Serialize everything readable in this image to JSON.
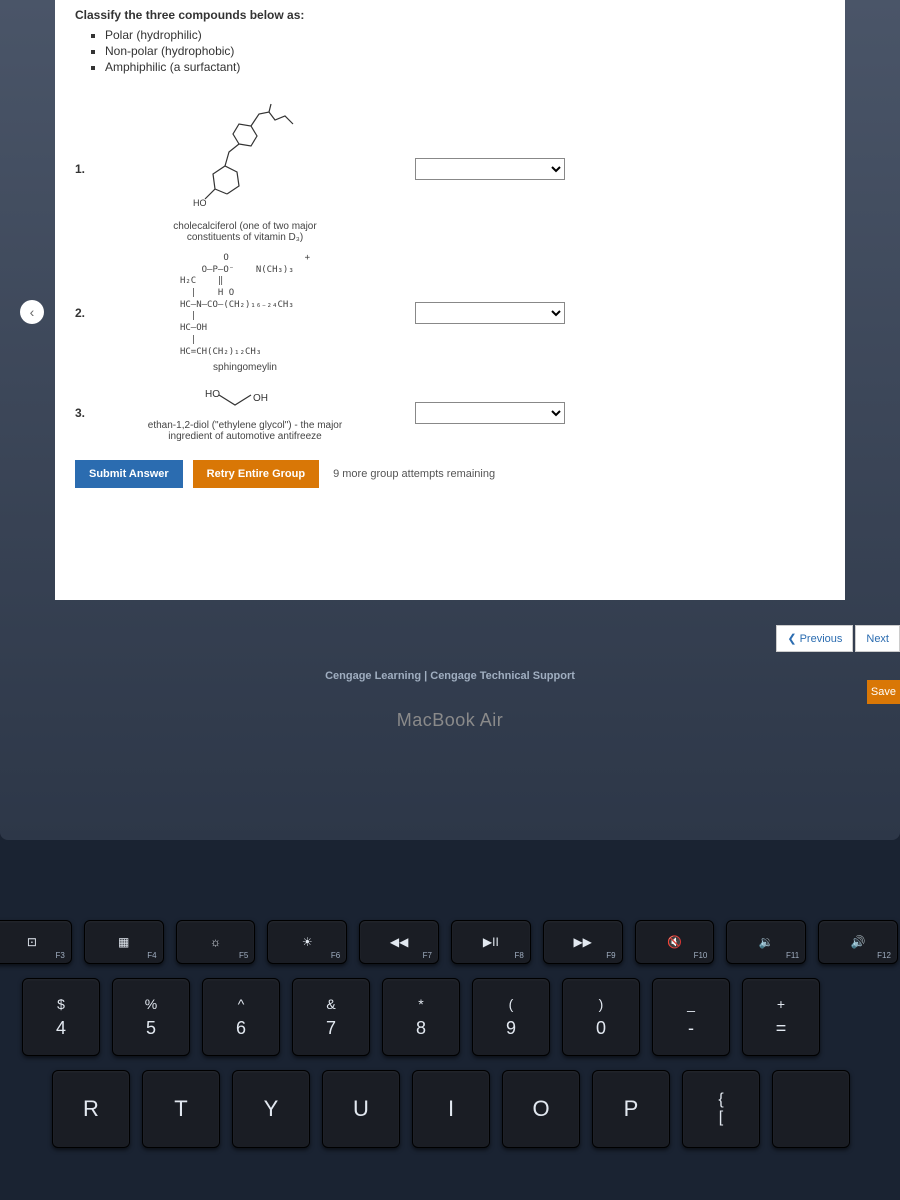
{
  "question": {
    "prompt": "Classify the three compounds below as:",
    "options": [
      "Polar (hydrophilic)",
      "Non-polar (hydrophobic)",
      "Amphiphilic (a surfactant)"
    ]
  },
  "compounds": [
    {
      "num": "1.",
      "caption_line1": "cholecalciferol (one of two major",
      "caption_line2": "constituents of vitamin D₃)",
      "label_ho": "HO"
    },
    {
      "num": "2.",
      "mol_lines": [
        "        O              +",
        "    O–P–O⁻    N(CH₃)₃",
        "H₂C    ‖",
        "  |    H O",
        "HC–N–CO–(CH₂)₁₆₋₂₄CH₃",
        "  |",
        "HC–OH",
        "  |",
        "HC=CH(CH₂)₁₂CH₃"
      ],
      "caption": "sphingomeylin"
    },
    {
      "num": "3.",
      "label_ho": "HO",
      "label_oh": "OH",
      "caption_line1": "ethan-1,2-diol (\"ethylene glycol\") - the major",
      "caption_line2": "ingredient of automotive antifreeze"
    }
  ],
  "buttons": {
    "submit": "Submit Answer",
    "retry": "Retry Entire Group",
    "attempts": "9 more group attempts remaining",
    "previous": "Previous",
    "next": "Next",
    "save": "Save"
  },
  "footer": {
    "cengage": "Cengage Learning",
    "support": "Cengage Technical Support",
    "separator": " | "
  },
  "laptop": "MacBook Air",
  "keyboard": {
    "fn_row": [
      {
        "icon": "⊡",
        "label": "F3",
        "name": "f3"
      },
      {
        "icon": "▦",
        "label": "F4",
        "name": "f4"
      },
      {
        "icon": "☼",
        "label": "F5",
        "name": "f5"
      },
      {
        "icon": "☀",
        "label": "F6",
        "name": "f6"
      },
      {
        "icon": "◀◀",
        "label": "F7",
        "name": "f7"
      },
      {
        "icon": "▶II",
        "label": "F8",
        "name": "f8"
      },
      {
        "icon": "▶▶",
        "label": "F9",
        "name": "f9"
      },
      {
        "icon": "🔇",
        "label": "F10",
        "name": "f10"
      },
      {
        "icon": "🔉",
        "label": "F11",
        "name": "f11"
      },
      {
        "icon": "🔊",
        "label": "F12",
        "name": "f12"
      }
    ],
    "num_row": [
      {
        "sym": "$",
        "num": "4"
      },
      {
        "sym": "%",
        "num": "5"
      },
      {
        "sym": "^",
        "num": "6"
      },
      {
        "sym": "&",
        "num": "7"
      },
      {
        "sym": "*",
        "num": "8"
      },
      {
        "sym": "(",
        "num": "9"
      },
      {
        "sym": ")",
        "num": "0"
      },
      {
        "sym": "_",
        "num": "-"
      },
      {
        "sym": "+",
        "num": "="
      }
    ],
    "letter_row": [
      "R",
      "T",
      "Y",
      "U",
      "I",
      "O",
      "P",
      "{",
      ""
    ]
  },
  "colors": {
    "submit_bg": "#2b6cb0",
    "retry_bg": "#d97706",
    "nav_text": "#2b6cb0"
  }
}
